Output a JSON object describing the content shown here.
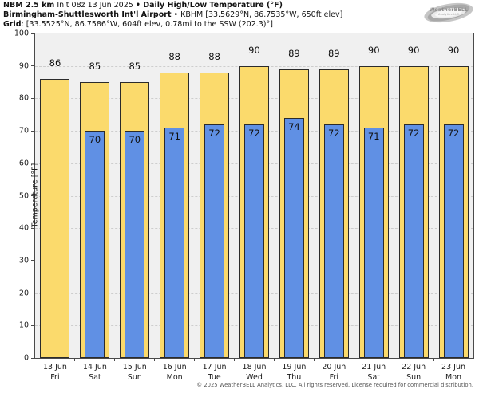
{
  "header": {
    "line1_bold1": "NBM 2.5 km",
    "line1_normal": " Init 08z 13 Jun 2025 ",
    "line1_bold2": "• Daily High/Low Temperature (°F)",
    "line2_bold": "Birmingham-Shuttlesworth Int'l Airport",
    "line2_normal": " • KBHM [33.5629°N, 86.7535°W, 650ft elev]",
    "line3_bold": "Grid",
    "line3_normal": ": [33.5525°N, 86.7586°W, 604ft elev, 0.78mi to the SSW (202.3)°]"
  },
  "logo": {
    "text": "WeatherBELL",
    "subtext": "Analytics LLC"
  },
  "footer": {
    "text": "© 2025 WeatherBELL Analytics, LLC. All rights reserved. License required for commercial distribution."
  },
  "chart_data": {
    "type": "bar",
    "title": "Daily High/Low Temperature (°F)",
    "ylabel": "Temperature [°F]",
    "ylim": [
      0,
      100
    ],
    "ytick_step": 10,
    "grid": "horizontal-dashed",
    "legend_position": "none",
    "categories": [
      "13 Jun",
      "14 Jun",
      "15 Jun",
      "16 Jun",
      "17 Jun",
      "18 Jun",
      "19 Jun",
      "20 Jun",
      "21 Jun",
      "22 Jun",
      "23 Jun"
    ],
    "day_labels": [
      "Fri",
      "Sat",
      "Sun",
      "Mon",
      "Tue",
      "Wed",
      "Thu",
      "Fri",
      "Sat",
      "Sun",
      "Mon"
    ],
    "series": [
      {
        "name": "Daily High",
        "color": "#FBDA6C",
        "border_color": "#2b2b2b",
        "values": [
          86,
          85,
          85,
          88,
          88,
          90,
          89,
          89,
          90,
          90,
          90
        ]
      },
      {
        "name": "Daily Low",
        "color": "#6090E4",
        "border_color": "#2b2b2b",
        "values": [
          null,
          70,
          70,
          71,
          72,
          72,
          74,
          72,
          71,
          72,
          72
        ]
      }
    ],
    "colors": {
      "plot_background": "#f0f0f0",
      "gridline": "#cdcdcd",
      "axis": "#4a4a4a"
    }
  }
}
